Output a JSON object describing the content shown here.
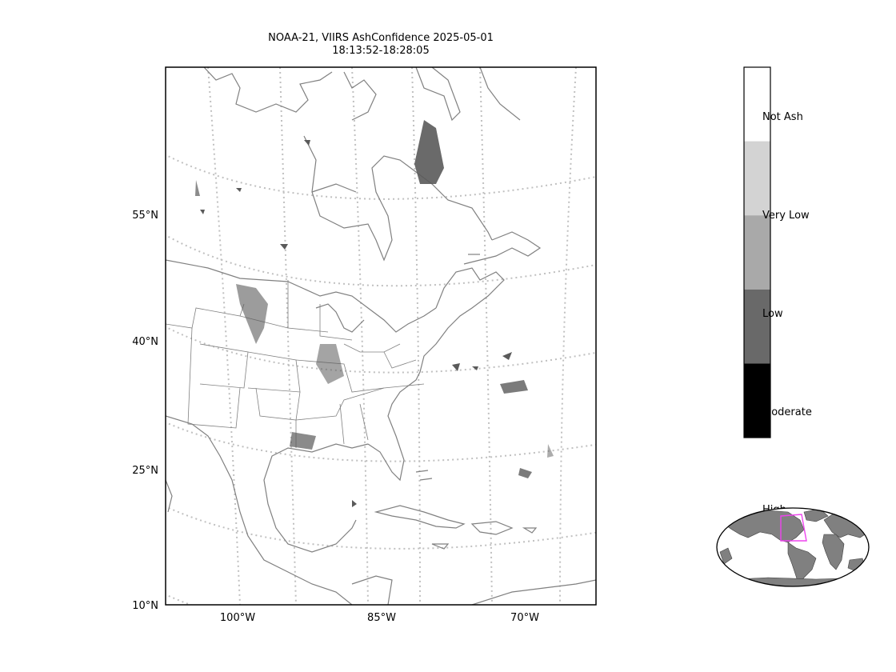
{
  "title": {
    "line1": "NOAA-21, VIIRS AshConfidence 2025-05-01",
    "line2": "18:13:52-18:28:05"
  },
  "latitude_labels": [
    "55°N",
    "40°N",
    "25°N",
    "10°N"
  ],
  "longitude_labels": [
    "100°W",
    "85°W",
    "70°W"
  ],
  "colorbar": {
    "categories": [
      {
        "label": "Not Ash",
        "color": "#ffffff"
      },
      {
        "label": "Very Low",
        "color": "#d3d3d3"
      },
      {
        "label": "Low",
        "color": "#a9a9a9"
      },
      {
        "label": "Moderate",
        "color": "#696969"
      },
      {
        "label": "High",
        "color": "#000000"
      }
    ]
  },
  "colors": {
    "coastline": "#808080",
    "gridline": "#c0c0c0",
    "ash_pixels": "#5a5a5a",
    "inset_land": "#808080",
    "inset_box": "#ee44ee"
  },
  "icons": [
    "locator-globe-icon"
  ]
}
